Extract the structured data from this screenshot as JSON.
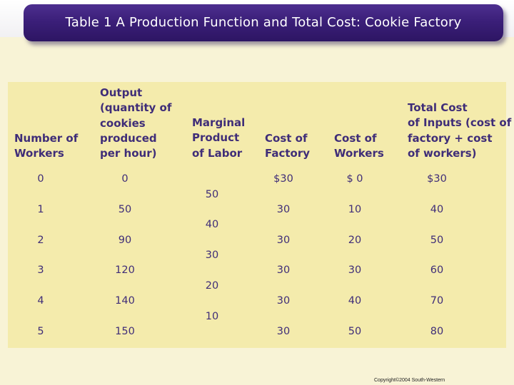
{
  "title": "Table 1 A Production Function and Total Cost: Cookie Factory",
  "table": {
    "headers": {
      "workers": "Number of\nWorkers",
      "output": "Output\n(quantity of\ncookies\nproduced\nper hour)",
      "marginal": "Marginal\nProduct\nof Labor",
      "factory": "Cost of\nFactory",
      "worker_cost": "Cost of\nWorkers",
      "total": "Total Cost\nof Inputs (cost of\nfactory + cost\nof workers)"
    },
    "rows": [
      {
        "workers": "0",
        "output": "0",
        "factory": "$30",
        "worker_cost": "$ 0",
        "total": "$30"
      },
      {
        "workers": "1",
        "output": "50",
        "factory": "30",
        "worker_cost": "10",
        "total": "40"
      },
      {
        "workers": "2",
        "output": "90",
        "factory": "30",
        "worker_cost": "20",
        "total": "50"
      },
      {
        "workers": "3",
        "output": "120",
        "factory": "30",
        "worker_cost": "30",
        "total": "60"
      },
      {
        "workers": "4",
        "output": "140",
        "factory": "30",
        "worker_cost": "40",
        "total": "70"
      },
      {
        "workers": "5",
        "output": "150",
        "factory": "30",
        "worker_cost": "50",
        "total": "80"
      }
    ],
    "marginal_products": [
      "50",
      "40",
      "30",
      "20",
      "10"
    ]
  },
  "copyright": "Copyright©2004  South-Western",
  "colors": {
    "banner": "#3b1f79",
    "panel": "#f4ebac",
    "text": "#3f2d78",
    "background": "#f8f3d6"
  }
}
